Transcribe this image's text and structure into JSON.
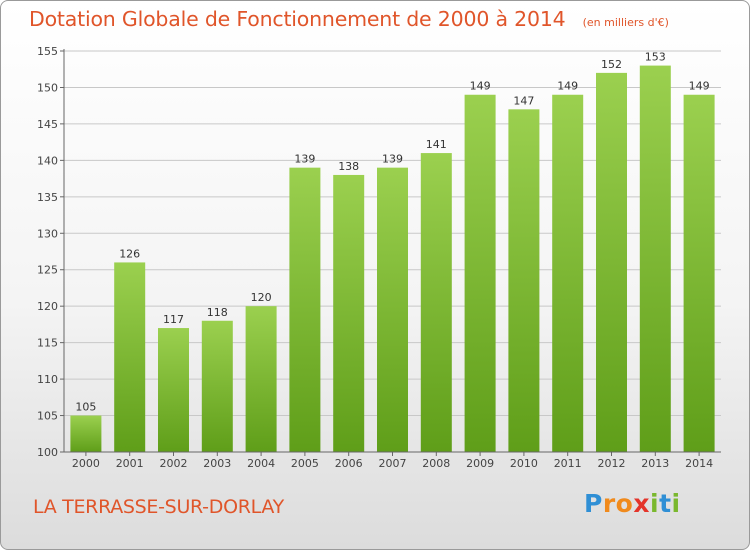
{
  "title": "Dotation Globale de Fonctionnement de 2000 à 2014",
  "unit_note": "(en milliers d'€)",
  "commune": "LA TERRASSE-SUR-DORLAY",
  "logo": {
    "text": "Proxiti",
    "letters": [
      "P",
      "r",
      "o",
      "x",
      "i",
      "t",
      "i"
    ],
    "colors": [
      "#2f8fd5",
      "#f08a1c",
      "#f08a1c",
      "#e4342a",
      "#7ab82e",
      "#2f8fd5",
      "#7ab82e"
    ]
  },
  "colors": {
    "bar_top": "#9bd04f",
    "bar_bottom": "#5f9e19",
    "title": "#e0552a",
    "grid": "#c8c8c8"
  },
  "chart_data": {
    "type": "bar",
    "title": "Dotation Globale de Fonctionnement de 2000 à 2014",
    "xlabel": "",
    "ylabel": "",
    "ylim": [
      100,
      155
    ],
    "yticks": [
      100,
      105,
      110,
      115,
      120,
      125,
      130,
      135,
      140,
      145,
      150,
      155
    ],
    "grid": true,
    "categories": [
      "2000",
      "2001",
      "2002",
      "2003",
      "2004",
      "2005",
      "2006",
      "2007",
      "2008",
      "2009",
      "2010",
      "2011",
      "2012",
      "2013",
      "2014"
    ],
    "values": [
      105,
      126,
      117,
      118,
      120,
      139,
      138,
      139,
      141,
      149,
      147,
      149,
      152,
      153,
      149
    ]
  }
}
